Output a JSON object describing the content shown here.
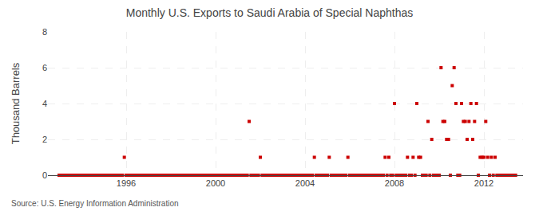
{
  "chart_data": {
    "type": "scatter",
    "title": "Monthly U.S. Exports to Saudi Arabia of Special Naphthas",
    "y_label": "Thousand Barrels",
    "annotations": [
      "Source: U.S. Energy Information Administration"
    ],
    "color": "#cc0000",
    "marker": "square",
    "grid": true,
    "xlim": [
      1992.5,
      2013.75
    ],
    "ylim": [
      0,
      8
    ],
    "xticks": [
      1996,
      2000,
      2004,
      2008,
      2012
    ],
    "yticks": [
      0,
      2,
      4,
      6,
      8
    ],
    "x": [
      1993.0,
      1993.083,
      1993.167,
      1993.25,
      1993.333,
      1993.417,
      1993.5,
      1993.583,
      1993.667,
      1993.75,
      1993.833,
      1993.917,
      1994.0,
      1994.083,
      1994.167,
      1994.25,
      1994.333,
      1994.417,
      1994.5,
      1994.583,
      1994.667,
      1994.75,
      1994.833,
      1994.917,
      1995.0,
      1995.083,
      1995.167,
      1995.25,
      1995.333,
      1995.417,
      1995.5,
      1995.583,
      1995.667,
      1995.75,
      1995.833,
      1995.917,
      1996.0,
      1996.083,
      1996.167,
      1996.25,
      1996.333,
      1996.417,
      1996.5,
      1996.583,
      1996.667,
      1996.75,
      1996.833,
      1996.917,
      1997.0,
      1997.083,
      1997.167,
      1997.25,
      1997.333,
      1997.417,
      1997.5,
      1997.583,
      1997.667,
      1997.75,
      1997.833,
      1997.917,
      1998.0,
      1998.083,
      1998.167,
      1998.25,
      1998.333,
      1998.417,
      1998.5,
      1998.583,
      1998.667,
      1998.75,
      1998.833,
      1998.917,
      1999.0,
      1999.083,
      1999.167,
      1999.25,
      1999.333,
      1999.417,
      1999.5,
      1999.583,
      1999.667,
      1999.75,
      1999.833,
      1999.917,
      2000.0,
      2000.083,
      2000.167,
      2000.25,
      2000.333,
      2000.417,
      2000.5,
      2000.583,
      2000.667,
      2000.75,
      2000.833,
      2000.917,
      2001.0,
      2001.083,
      2001.167,
      2001.25,
      2001.333,
      2001.417,
      2001.5,
      2001.583,
      2001.667,
      2001.75,
      2001.833,
      2001.917,
      2002.0,
      2002.083,
      2002.167,
      2002.25,
      2002.333,
      2002.417,
      2002.5,
      2002.583,
      2002.667,
      2002.75,
      2002.833,
      2002.917,
      2003.0,
      2003.083,
      2003.167,
      2003.25,
      2003.333,
      2003.417,
      2003.5,
      2003.583,
      2003.667,
      2003.75,
      2003.833,
      2003.917,
      2004.0,
      2004.083,
      2004.167,
      2004.25,
      2004.333,
      2004.417,
      2004.5,
      2004.583,
      2004.667,
      2004.75,
      2004.833,
      2004.917,
      2005.0,
      2005.083,
      2005.167,
      2005.25,
      2005.333,
      2005.417,
      2005.5,
      2005.583,
      2005.667,
      2005.75,
      2005.833,
      2005.917,
      2006.0,
      2006.083,
      2006.167,
      2006.25,
      2006.333,
      2006.417,
      2006.5,
      2006.583,
      2006.667,
      2006.75,
      2006.833,
      2006.917,
      2007.0,
      2007.083,
      2007.167,
      2007.25,
      2007.333,
      2007.417,
      2007.5,
      2007.583,
      2007.667,
      2007.75,
      2007.833,
      2007.917,
      2008.0,
      2008.083,
      2008.167,
      2008.25,
      2008.333,
      2008.417,
      2008.5,
      2008.583,
      2008.667,
      2008.75,
      2008.833,
      2008.917,
      2009.0,
      2009.083,
      2009.167,
      2009.25,
      2009.333,
      2009.417,
      2009.5,
      2009.583,
      2009.667,
      2009.75,
      2009.833,
      2009.917,
      2010.0,
      2010.083,
      2010.167,
      2010.25,
      2010.333,
      2010.417,
      2010.5,
      2010.583,
      2010.667,
      2010.75,
      2010.833,
      2010.917,
      2011.0,
      2011.083,
      2011.167,
      2011.25,
      2011.333,
      2011.417,
      2011.5,
      2011.583,
      2011.667,
      2011.75,
      2011.833,
      2011.917,
      2012.0,
      2012.083,
      2012.167,
      2012.25,
      2012.333,
      2012.417,
      2012.5,
      2012.583,
      2012.667,
      2012.75,
      2012.833,
      2012.917,
      2013.0,
      2013.083,
      2013.167,
      2013.25,
      2013.333,
      2013.417
    ],
    "values": [
      0,
      0,
      0,
      0,
      0,
      0,
      0,
      0,
      0,
      0,
      0,
      0,
      0,
      0,
      0,
      0,
      0,
      0,
      0,
      0,
      0,
      0,
      0,
      0,
      0,
      0,
      0,
      0,
      0,
      0,
      0,
      0,
      0,
      0,
      0,
      1,
      0,
      0,
      0,
      0,
      0,
      0,
      0,
      0,
      0,
      0,
      0,
      0,
      0,
      0,
      0,
      0,
      0,
      0,
      0,
      0,
      0,
      0,
      0,
      0,
      0,
      0,
      0,
      0,
      0,
      0,
      0,
      0,
      0,
      0,
      0,
      0,
      0,
      0,
      0,
      0,
      0,
      0,
      0,
      0,
      0,
      0,
      0,
      0,
      0,
      0,
      0,
      0,
      0,
      0,
      0,
      0,
      0,
      0,
      0,
      0,
      0,
      0,
      0,
      0,
      0,
      0,
      3,
      0,
      0,
      0,
      0,
      0,
      1,
      0,
      0,
      0,
      0,
      0,
      0,
      0,
      0,
      0,
      0,
      0,
      0,
      0,
      0,
      0,
      0,
      0,
      0,
      0,
      0,
      0,
      0,
      0,
      0,
      0,
      0,
      0,
      0,
      1,
      0,
      0,
      0,
      0,
      0,
      0,
      0,
      1,
      0,
      0,
      0,
      0,
      0,
      0,
      0,
      0,
      0,
      1,
      0,
      0,
      0,
      0,
      0,
      0,
      0,
      0,
      0,
      0,
      0,
      0,
      0,
      0,
      0,
      0,
      0,
      0,
      0,
      1,
      0,
      1,
      0,
      0,
      4,
      0,
      0,
      0,
      0,
      0,
      0,
      1,
      0,
      0,
      1,
      0,
      4,
      1,
      1,
      0,
      0,
      0,
      3,
      0,
      2,
      0,
      0,
      0,
      0,
      6,
      3,
      3,
      2,
      2,
      0,
      5,
      6,
      4,
      0,
      0,
      4,
      3,
      3,
      2,
      3,
      4,
      2,
      3,
      4,
      0,
      1,
      1,
      1,
      3,
      1,
      0,
      1,
      0,
      1,
      0,
      0,
      0,
      0,
      0,
      0,
      0,
      0,
      0,
      0,
      0
    ]
  }
}
